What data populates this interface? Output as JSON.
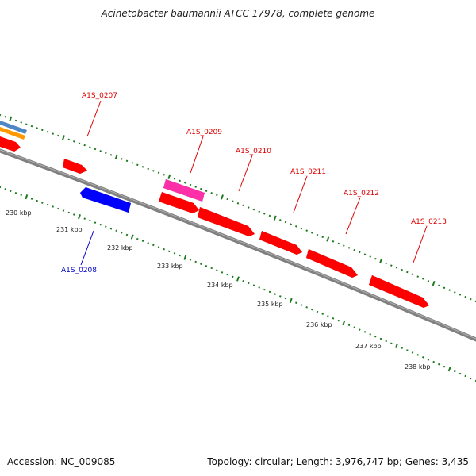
{
  "title": "Acinetobacter baumannii ATCC 17978, complete genome",
  "footer": {
    "accession": "Accession: NC_009085",
    "summary": "Topology: circular; Length: 3,976,747 bp; Genes: 3,435"
  },
  "colors": {
    "forward_gene": "#ff0000",
    "reverse_gene": "#0000ff",
    "pink_gene": "#ff2fa8",
    "backbone": "#808080",
    "tick": "#1e7a1e",
    "label_forward": "#dd0000",
    "label_reverse": "#0000cc",
    "edge_blue": "#4f86c6",
    "edge_orange": "#ff9900"
  },
  "scale_labels": [
    "230 kbp",
    "231 kbp",
    "232 kbp",
    "233 kbp",
    "234 kbp",
    "235 kbp",
    "236 kbp",
    "237 kbp",
    "238 kbp"
  ],
  "gene_labels": [
    {
      "text": "A1S_0207",
      "strand": "forward"
    },
    {
      "text": "A1S_0208",
      "strand": "reverse"
    },
    {
      "text": "A1S_0209",
      "strand": "forward"
    },
    {
      "text": "A1S_0210",
      "strand": "forward"
    },
    {
      "text": "A1S_0211",
      "strand": "forward"
    },
    {
      "text": "A1S_0212",
      "strand": "forward"
    },
    {
      "text": "A1S_0213",
      "strand": "forward"
    }
  ]
}
